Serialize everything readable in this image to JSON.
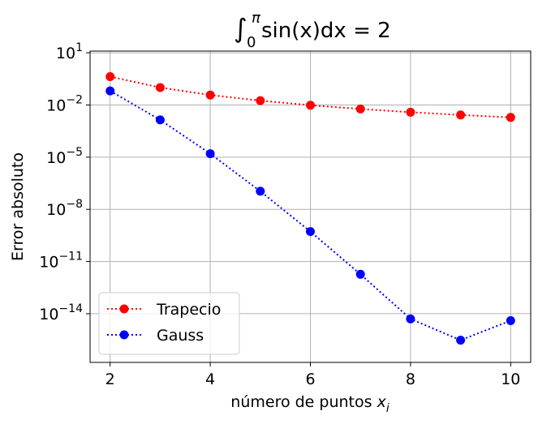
{
  "chart_data": {
    "type": "line",
    "title": {
      "integral_sign": "∫",
      "upper_limit": "π",
      "lower_limit": "0",
      "expression": "sin(x)dx = 2"
    },
    "xlabel": {
      "text": "número de puntos ",
      "var": "x",
      "sub": "i"
    },
    "ylabel": "Error absoluto",
    "yscale": "log",
    "xlim": [
      1.6,
      10.4
    ],
    "ylim_log10": [
      -16.8,
      1.1
    ],
    "grid": true,
    "legend_position": "lower-left",
    "x_ticks": [
      2,
      4,
      6,
      8,
      10
    ],
    "x_tick_labels": [
      "2",
      "4",
      "6",
      "8",
      "10"
    ],
    "y_ticks_exponent": [
      1,
      -2,
      -5,
      -8,
      -11,
      -14
    ],
    "y_tick_labels": [
      {
        "base": "10",
        "exp": "1"
      },
      {
        "base": "10",
        "exp": "−2"
      },
      {
        "base": "10",
        "exp": "−5"
      },
      {
        "base": "10",
        "exp": "−8"
      },
      {
        "base": "10",
        "exp": "−11"
      },
      {
        "base": "10",
        "exp": "−14"
      }
    ],
    "x": [
      2,
      3,
      4,
      5,
      6,
      7,
      8,
      9,
      10
    ],
    "series": [
      {
        "name": "Trapecio",
        "color": "#ff0000",
        "linestyle": "dotted",
        "marker": "circle",
        "values": [
          0.429,
          0.101,
          0.0374,
          0.0178,
          0.00971,
          0.0059,
          0.00386,
          0.00267,
          0.00193
        ]
      },
      {
        "name": "Gauss",
        "color": "#0000ff",
        "linestyle": "dotted",
        "marker": "circle",
        "values": [
          0.0648,
          0.00139,
          1.58e-05,
          1.1e-07,
          5.28e-10,
          1.85e-12,
          5e-15,
          3e-16,
          4e-15
        ]
      }
    ]
  }
}
